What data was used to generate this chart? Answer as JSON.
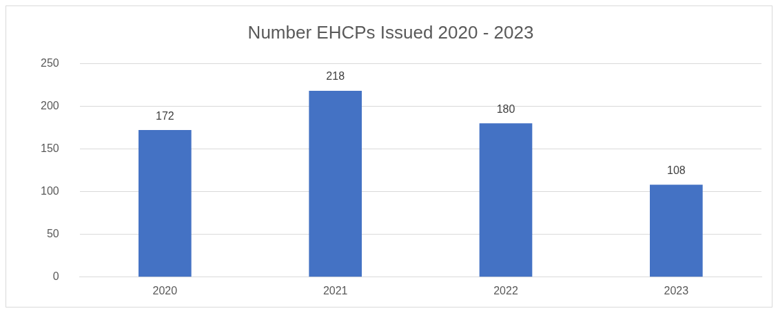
{
  "chart_data": {
    "type": "bar",
    "title": "Number EHCPs Issued 2020 - 2023",
    "categories": [
      "2020",
      "2021",
      "2022",
      "2023"
    ],
    "values": [
      172,
      218,
      180,
      108
    ],
    "color": "#4472c4",
    "ylim": [
      0,
      250
    ],
    "yticks": [
      0,
      50,
      100,
      150,
      200,
      250
    ],
    "grid": "y",
    "data_labels": true
  }
}
